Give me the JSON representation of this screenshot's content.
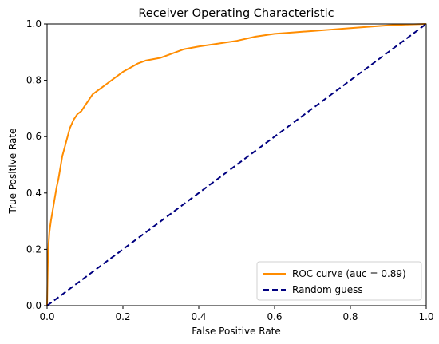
{
  "chart_data": {
    "type": "line",
    "title": "Receiver Operating Characteristic",
    "xlabel": "False Positive Rate",
    "ylabel": "True Positive Rate",
    "xlim": [
      0.0,
      1.0
    ],
    "ylim": [
      0.0,
      1.0
    ],
    "x_ticks": [
      "0.0",
      "0.2",
      "0.4",
      "0.6",
      "0.8",
      "1.0"
    ],
    "y_ticks": [
      "0.0",
      "0.2",
      "0.4",
      "0.6",
      "0.8",
      "1.0"
    ],
    "grid": false,
    "legend_position": "lower-right",
    "series": [
      {
        "name": "ROC curve (auc = 0.89)",
        "color": "#ff8c00",
        "style": "solid",
        "x": [
          0.0,
          0.002,
          0.004,
          0.006,
          0.01,
          0.015,
          0.02,
          0.025,
          0.03,
          0.035,
          0.04,
          0.05,
          0.06,
          0.07,
          0.08,
          0.09,
          0.1,
          0.11,
          0.12,
          0.13,
          0.14,
          0.15,
          0.16,
          0.18,
          0.2,
          0.22,
          0.24,
          0.26,
          0.28,
          0.3,
          0.32,
          0.34,
          0.36,
          0.38,
          0.4,
          0.45,
          0.5,
          0.55,
          0.6,
          0.65,
          0.7,
          0.75,
          0.8,
          0.85,
          0.9,
          0.95,
          1.0
        ],
        "y": [
          0.0,
          0.15,
          0.22,
          0.26,
          0.3,
          0.34,
          0.38,
          0.42,
          0.45,
          0.49,
          0.53,
          0.58,
          0.63,
          0.66,
          0.68,
          0.69,
          0.71,
          0.73,
          0.75,
          0.76,
          0.77,
          0.78,
          0.79,
          0.81,
          0.83,
          0.845,
          0.86,
          0.87,
          0.875,
          0.88,
          0.89,
          0.9,
          0.91,
          0.915,
          0.92,
          0.93,
          0.94,
          0.955,
          0.965,
          0.97,
          0.975,
          0.98,
          0.985,
          0.99,
          0.995,
          0.998,
          1.0
        ]
      },
      {
        "name": "Random guess",
        "color": "#000080",
        "style": "dashed",
        "x": [
          0.0,
          1.0
        ],
        "y": [
          0.0,
          1.0
        ]
      }
    ]
  }
}
